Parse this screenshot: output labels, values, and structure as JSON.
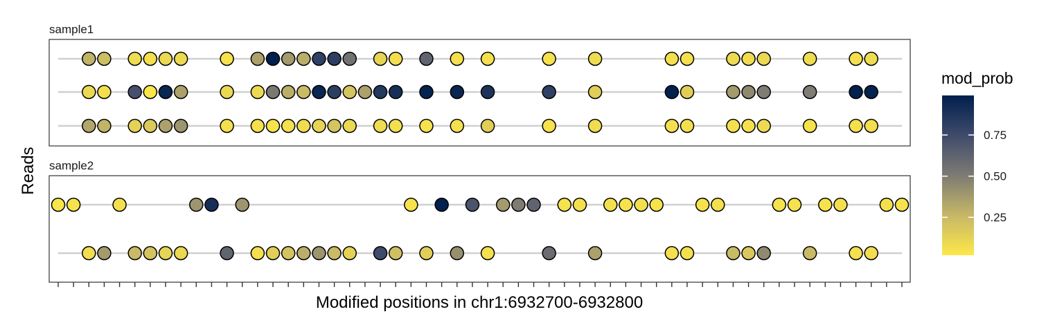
{
  "chart_data": {
    "type": "scatter",
    "title": "",
    "xlabel": "Modified positions in chr1:6932700-6932800",
    "ylabel": "Reads",
    "legend": {
      "title": "mod_prob",
      "placement": "right",
      "ticks": [
        0.25,
        0.5,
        0.75
      ],
      "tick_labels": [
        "0.25",
        "0.50",
        "0.75"
      ],
      "range": [
        0.02,
        0.99
      ],
      "colors": [
        "#FDE849",
        "#C6B767",
        "#7D7B73",
        "#3F4B6B",
        "#001F4D"
      ]
    },
    "grid": false,
    "x_tick_count": 56,
    "panels": [
      {
        "label": "sample1",
        "reads": [
          {
            "span": [
              0,
              55
            ],
            "points": [
              [
                2,
                0.28
              ],
              [
                3,
                0.23
              ],
              [
                5,
                0.08
              ],
              [
                6,
                0.06
              ],
              [
                7,
                0.1
              ],
              [
                8,
                0.09
              ],
              [
                11,
                0.05
              ],
              [
                13,
                0.35
              ],
              [
                14,
                0.99
              ],
              [
                15,
                0.38
              ],
              [
                16,
                0.3
              ],
              [
                17,
                0.8
              ],
              [
                18,
                0.82
              ],
              [
                19,
                0.55
              ],
              [
                21,
                0.12
              ],
              [
                22,
                0.07
              ],
              [
                24,
                0.62
              ],
              [
                26,
                0.06
              ],
              [
                28,
                0.06
              ],
              [
                32,
                0.05
              ],
              [
                35,
                0.08
              ],
              [
                40,
                0.06
              ],
              [
                41,
                0.06
              ],
              [
                44,
                0.09
              ],
              [
                45,
                0.08
              ],
              [
                46,
                0.1
              ],
              [
                49,
                0.08
              ],
              [
                52,
                0.06
              ],
              [
                53,
                0.08
              ]
            ]
          },
          {
            "span": [
              0,
              55
            ],
            "points": [
              [
                2,
                0.1
              ],
              [
                3,
                0.07
              ],
              [
                5,
                0.72
              ],
              [
                6,
                0.03
              ],
              [
                7,
                0.95
              ],
              [
                8,
                0.35
              ],
              [
                11,
                0.1
              ],
              [
                13,
                0.09
              ],
              [
                14,
                0.52
              ],
              [
                15,
                0.3
              ],
              [
                16,
                0.25
              ],
              [
                17,
                0.95
              ],
              [
                18,
                0.82
              ],
              [
                19,
                0.2
              ],
              [
                20,
                0.35
              ],
              [
                21,
                0.85
              ],
              [
                22,
                0.9
              ],
              [
                24,
                0.97
              ],
              [
                26,
                0.95
              ],
              [
                28,
                0.88
              ],
              [
                32,
                0.8
              ],
              [
                35,
                0.15
              ],
              [
                40,
                0.98
              ],
              [
                41,
                0.15
              ],
              [
                44,
                0.38
              ],
              [
                45,
                0.45
              ],
              [
                46,
                0.5
              ],
              [
                49,
                0.5
              ],
              [
                52,
                0.98
              ],
              [
                53,
                0.97
              ]
            ]
          },
          {
            "span": [
              0,
              55
            ],
            "points": [
              [
                2,
                0.33
              ],
              [
                3,
                0.28
              ],
              [
                5,
                0.13
              ],
              [
                6,
                0.17
              ],
              [
                7,
                0.35
              ],
              [
                8,
                0.4
              ],
              [
                11,
                0.06
              ],
              [
                13,
                0.06
              ],
              [
                14,
                0.05
              ],
              [
                15,
                0.06
              ],
              [
                16,
                0.08
              ],
              [
                17,
                0.12
              ],
              [
                18,
                0.2
              ],
              [
                19,
                0.1
              ],
              [
                21,
                0.08
              ],
              [
                22,
                0.06
              ],
              [
                24,
                0.05
              ],
              [
                26,
                0.06
              ],
              [
                28,
                0.15
              ],
              [
                32,
                0.05
              ],
              [
                35,
                0.08
              ],
              [
                40,
                0.06
              ],
              [
                41,
                0.06
              ],
              [
                44,
                0.06
              ],
              [
                45,
                0.06
              ],
              [
                46,
                0.09
              ],
              [
                49,
                0.05
              ],
              [
                52,
                0.06
              ],
              [
                53,
                0.07
              ]
            ]
          }
        ]
      },
      {
        "label": "sample2",
        "reads": [
          {
            "span": [
              0,
              55
            ],
            "points": [
              [
                0,
                0.04
              ],
              [
                1,
                0.05
              ],
              [
                4,
                0.06
              ],
              [
                9,
                0.4
              ],
              [
                10,
                0.9
              ],
              [
                12,
                0.4
              ],
              [
                23,
                0.05
              ],
              [
                25,
                0.98
              ],
              [
                27,
                0.7
              ],
              [
                29,
                0.38
              ],
              [
                30,
                0.5
              ],
              [
                31,
                0.62
              ],
              [
                33,
                0.05
              ],
              [
                34,
                0.06
              ],
              [
                36,
                0.06
              ],
              [
                37,
                0.05
              ],
              [
                38,
                0.06
              ],
              [
                39,
                0.05
              ],
              [
                42,
                0.05
              ],
              [
                43,
                0.06
              ],
              [
                47,
                0.05
              ],
              [
                48,
                0.05
              ],
              [
                50,
                0.05
              ],
              [
                51,
                0.06
              ],
              [
                54,
                0.06
              ],
              [
                55,
                0.05
              ]
            ]
          },
          {
            "span": [
              0,
              55
            ],
            "points": [
              [
                2,
                0.07
              ],
              [
                3,
                0.38
              ],
              [
                5,
                0.25
              ],
              [
                6,
                0.2
              ],
              [
                7,
                0.12
              ],
              [
                8,
                0.1
              ],
              [
                11,
                0.62
              ],
              [
                13,
                0.06
              ],
              [
                14,
                0.15
              ],
              [
                15,
                0.2
              ],
              [
                16,
                0.3
              ],
              [
                17,
                0.4
              ],
              [
                18,
                0.25
              ],
              [
                19,
                0.13
              ],
              [
                21,
                0.75
              ],
              [
                22,
                0.22
              ],
              [
                24,
                0.15
              ],
              [
                26,
                0.42
              ],
              [
                28,
                0.06
              ],
              [
                32,
                0.58
              ],
              [
                35,
                0.35
              ],
              [
                40,
                0.06
              ],
              [
                41,
                0.06
              ],
              [
                44,
                0.25
              ],
              [
                45,
                0.18
              ],
              [
                46,
                0.45
              ],
              [
                49,
                0.25
              ],
              [
                52,
                0.06
              ],
              [
                53,
                0.07
              ]
            ]
          }
        ]
      }
    ]
  }
}
